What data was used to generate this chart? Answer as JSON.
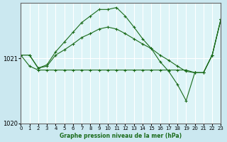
{
  "background_color": "#cbe8f0",
  "plot_bg_color": "#ddf4f7",
  "grid_color": "#ffffff",
  "line_color": "#1a6b1a",
  "xlabel": "Graphe pression niveau de la mer (hPa)",
  "xlim": [
    0,
    23
  ],
  "ylim": [
    1020.55,
    1021.85
  ],
  "yticks": [
    1020,
    1021
  ],
  "xticks": [
    0,
    1,
    2,
    3,
    4,
    5,
    6,
    7,
    8,
    9,
    10,
    11,
    12,
    13,
    14,
    15,
    16,
    17,
    18,
    19,
    20,
    21,
    22,
    23
  ],
  "line1_x": [
    0,
    1,
    2,
    3,
    4,
    5,
    6,
    7,
    8,
    9,
    10,
    11,
    12,
    13,
    14,
    15,
    16,
    17,
    18,
    19,
    20,
    21,
    22,
    23
  ],
  "line1_y": [
    1021.05,
    1021.05,
    1020.85,
    1020.9,
    1021.1,
    1021.25,
    1021.4,
    1021.55,
    1021.65,
    1021.75,
    1021.75,
    1021.78,
    1021.65,
    1021.48,
    1021.3,
    1021.15,
    1020.95,
    1020.8,
    1020.6,
    1020.35,
    1020.78,
    1020.78,
    1021.05,
    1021.6
  ],
  "line2_x": [
    0,
    1,
    2,
    3,
    4,
    5,
    6,
    7,
    8,
    9,
    10,
    11,
    12,
    13,
    14,
    15,
    16,
    17,
    18,
    19,
    20,
    21,
    22,
    23
  ],
  "line2_y": [
    1021.05,
    1021.05,
    1020.85,
    1020.88,
    1021.05,
    1021.13,
    1021.22,
    1021.32,
    1021.38,
    1021.45,
    1021.48,
    1021.45,
    1021.38,
    1021.3,
    1021.22,
    1021.15,
    1021.05,
    1020.97,
    1020.88,
    1020.8,
    1020.78,
    1020.78,
    1021.05,
    1021.6
  ],
  "line3_x": [
    0,
    1,
    2,
    3,
    4,
    5,
    6,
    7,
    8,
    9,
    10,
    11,
    12,
    13,
    14,
    15,
    16,
    17,
    18,
    19,
    20,
    21,
    22,
    23
  ],
  "line3_y": [
    1021.05,
    1020.88,
    1020.82,
    1020.82,
    1020.82,
    1020.82,
    1020.82,
    1020.82,
    1020.82,
    1020.82,
    1020.82,
    1020.82,
    1020.82,
    1020.82,
    1020.82,
    1020.82,
    1020.82,
    1020.82,
    1020.82,
    1020.82,
    1020.78,
    1020.78,
    1021.05,
    1021.6
  ]
}
